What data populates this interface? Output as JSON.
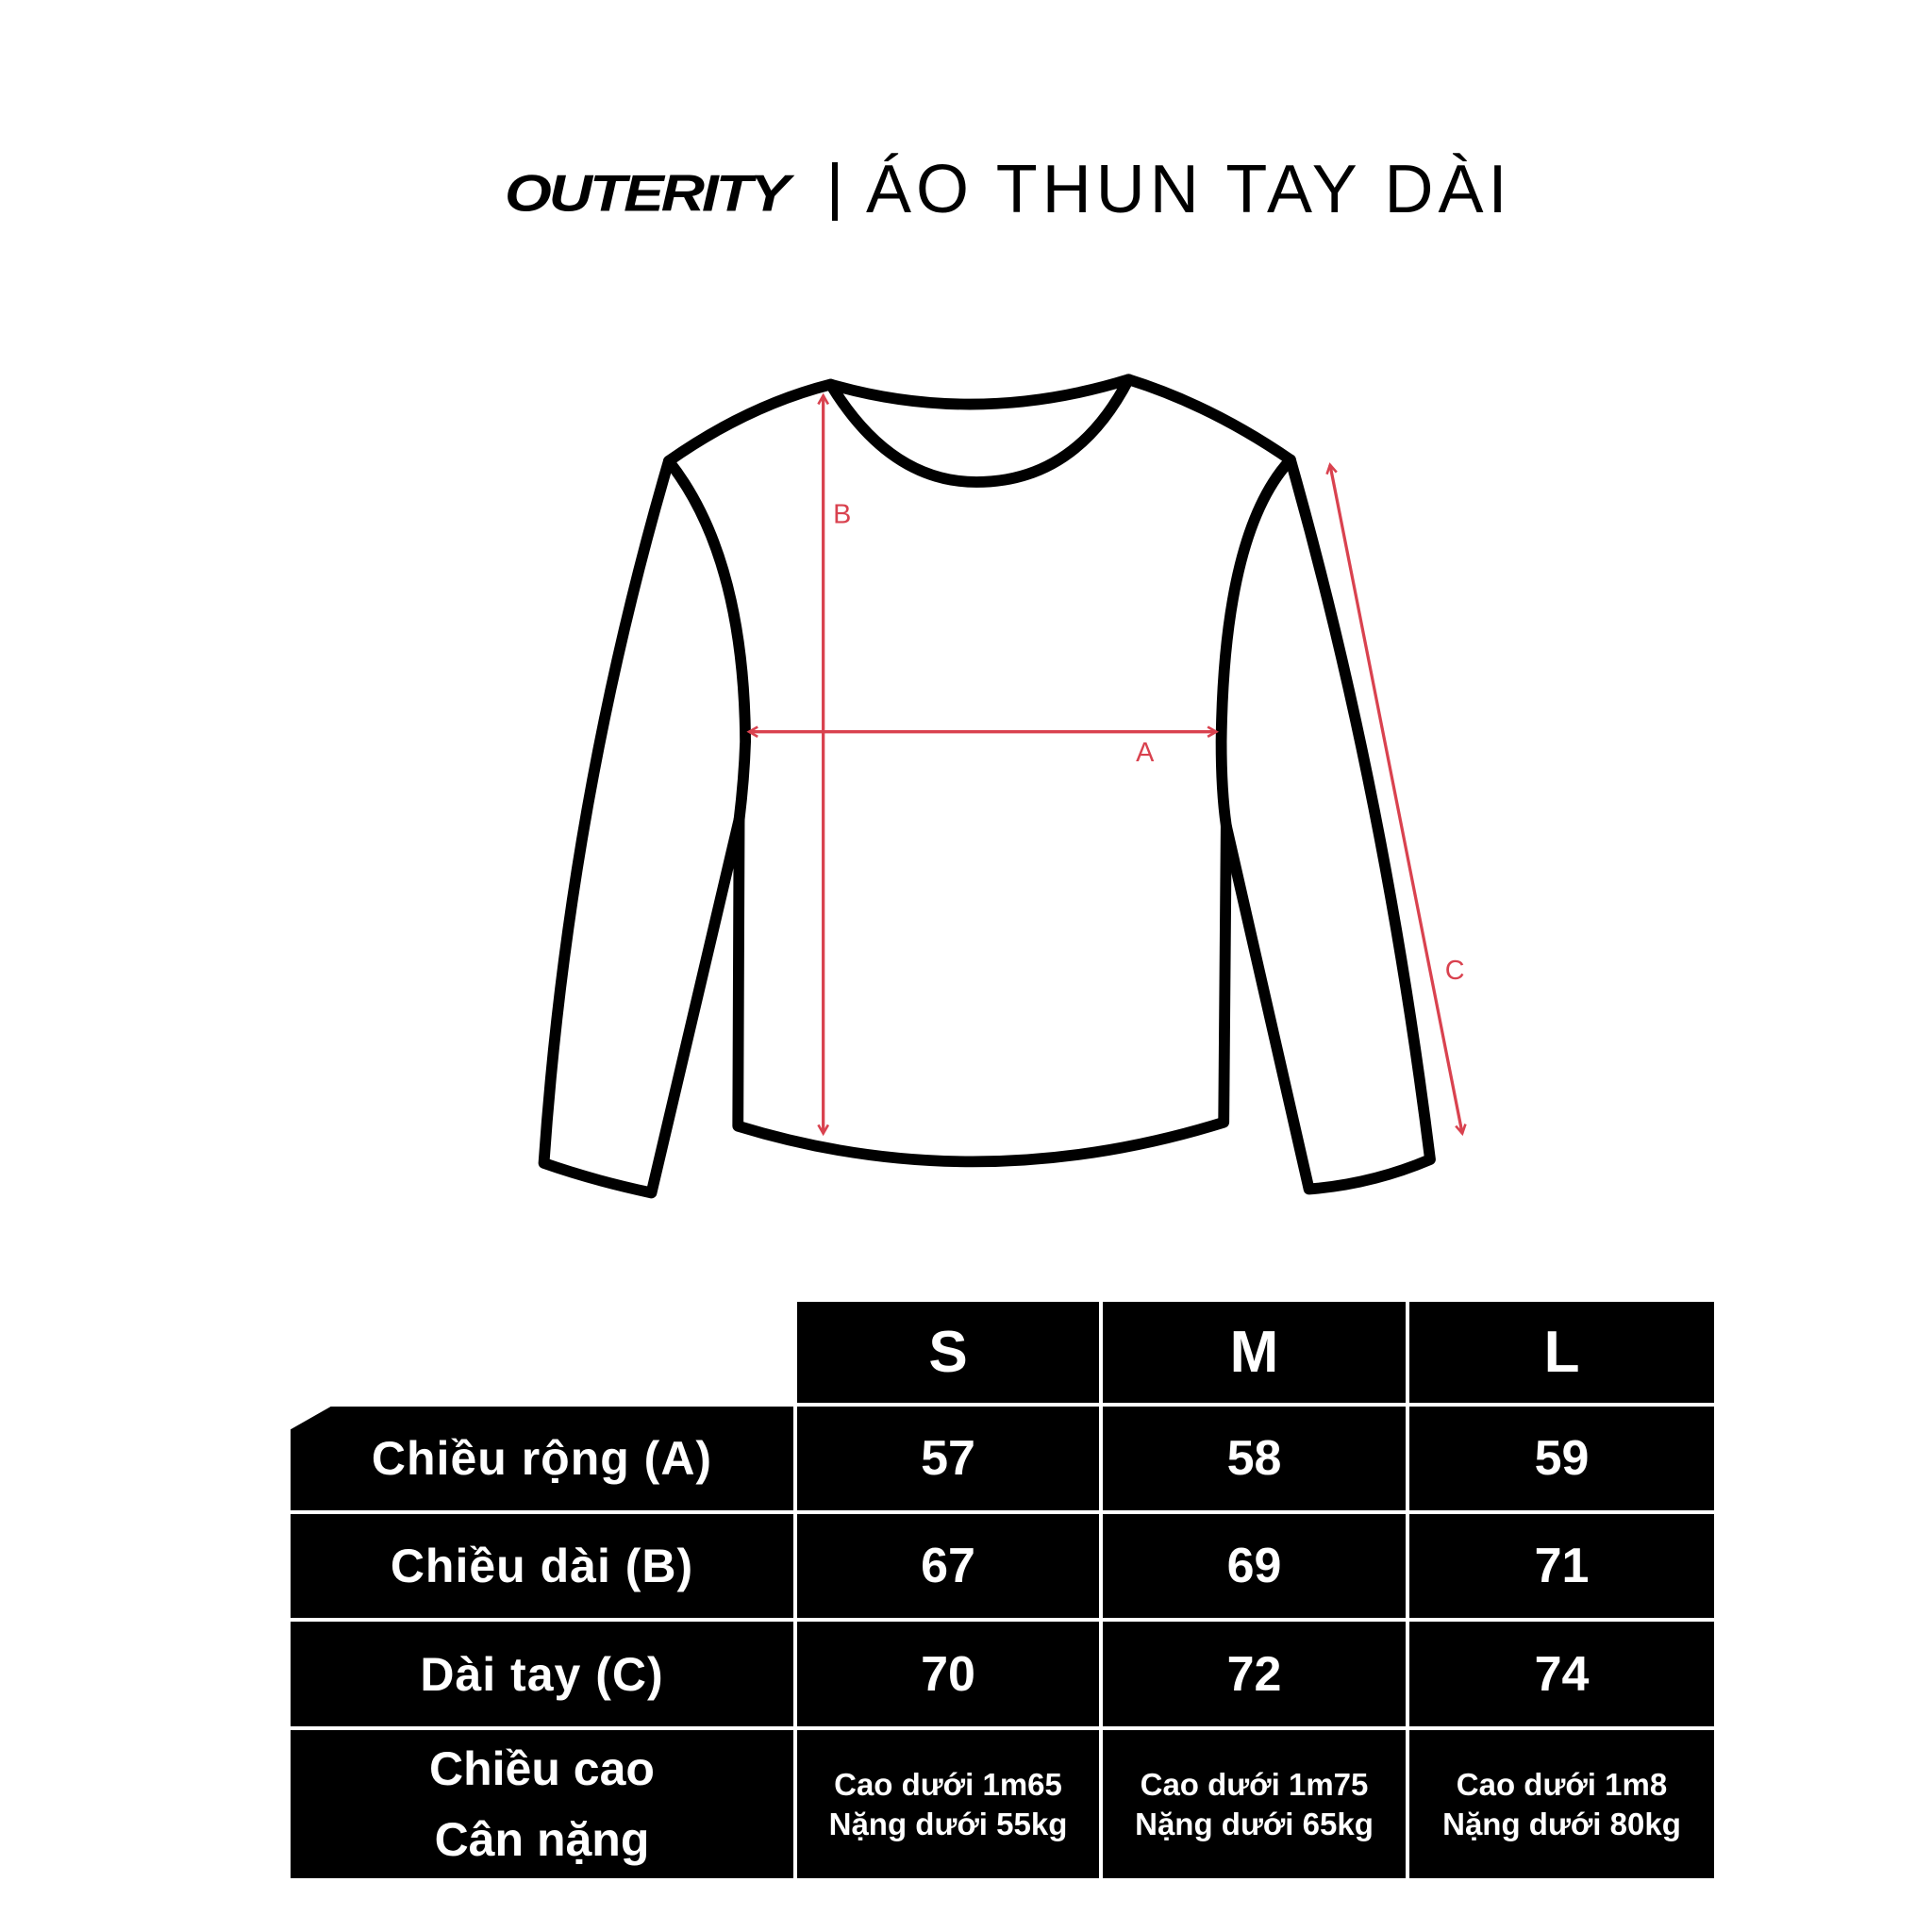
{
  "brand": {
    "logo_text": "OUTERITY"
  },
  "title": "ÁO THUN TAY DÀI",
  "diagram": {
    "labels": {
      "a": "A",
      "b": "B",
      "c": "C"
    },
    "outline_color": "#000000",
    "measure_color": "#d9424f"
  },
  "size_table": {
    "sizes": [
      "S",
      "M",
      "L"
    ],
    "rows": [
      {
        "label": "Chiều rộng (A)",
        "values": [
          "57",
          "58",
          "59"
        ]
      },
      {
        "label": "Chiều dài (B)",
        "values": [
          "67",
          "69",
          "71"
        ]
      },
      {
        "label": "Dài tay (C)",
        "values": [
          "70",
          "72",
          "74"
        ]
      }
    ],
    "fit_row": {
      "label_line1": "Chiều cao",
      "label_line2": "Cân nặng",
      "values": [
        {
          "height": "Cao dưới 1m65",
          "weight": "Nặng dưới 55kg"
        },
        {
          "height": "Cao dưới 1m75",
          "weight": "Nặng dưới 65kg"
        },
        {
          "height": "Cao dưới 1m8",
          "weight": "Nặng dưới 80kg"
        }
      ]
    }
  }
}
